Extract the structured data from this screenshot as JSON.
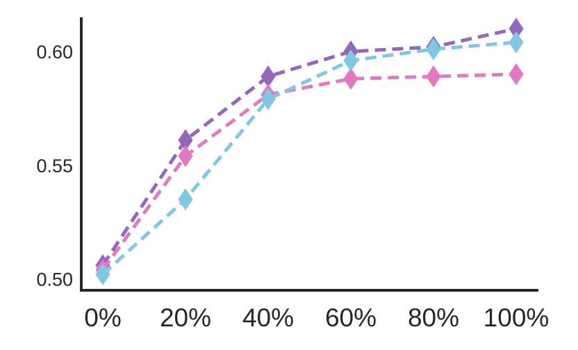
{
  "chart_data": {
    "type": "line",
    "title": "",
    "xlabel": "",
    "ylabel": "",
    "categories": [
      "0%",
      "20%",
      "40%",
      "60%",
      "80%",
      "100%"
    ],
    "ylim": [
      0.495,
      0.615
    ],
    "yticks": [
      0.5,
      0.55,
      0.6
    ],
    "ytick_labels": [
      "0.50",
      "0.55",
      "0.60"
    ],
    "grid": false,
    "legend": "none",
    "marker": "diamond",
    "line_style": "dashed",
    "series": [
      {
        "color": "#9467bd",
        "values": [
          0.506,
          0.561,
          0.589,
          0.6,
          0.602,
          0.61
        ]
      },
      {
        "color": "#e377c2",
        "values": [
          0.504,
          0.554,
          0.581,
          0.588,
          0.589,
          0.59
        ]
      },
      {
        "color": "#7ec8e3",
        "values": [
          0.502,
          0.535,
          0.579,
          0.596,
          0.601,
          0.604
        ]
      }
    ]
  }
}
